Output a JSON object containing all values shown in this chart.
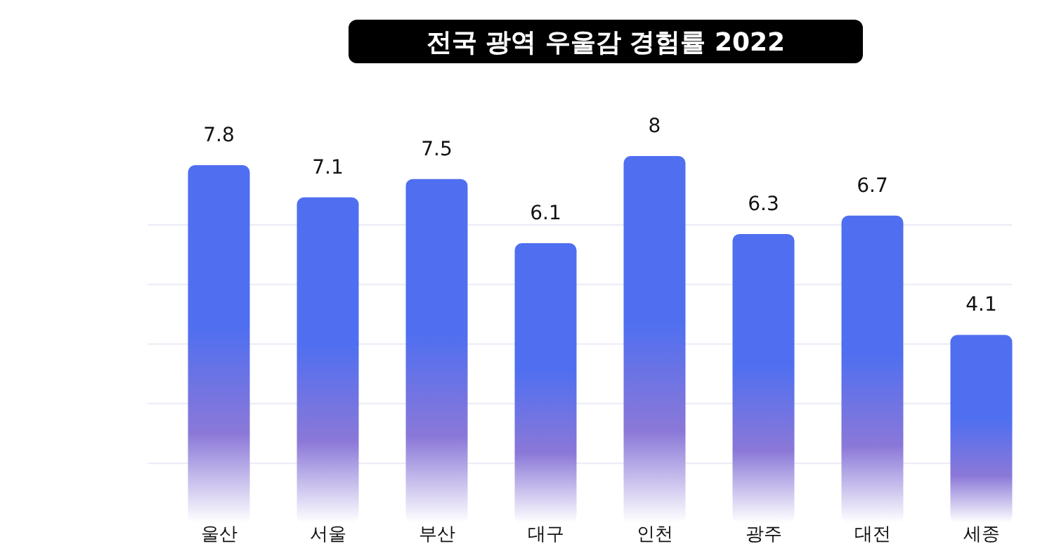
{
  "chart_data": {
    "type": "bar",
    "title": "전국 광역 우울감 경험률 2022",
    "categories": [
      "울산",
      "서울",
      "부산",
      "대구",
      "인천",
      "광주",
      "대전",
      "세종"
    ],
    "values": [
      7.8,
      7.1,
      7.5,
      6.1,
      8,
      6.3,
      6.7,
      4.1
    ],
    "color": "#4f6ff0",
    "ylim": [
      0,
      8
    ],
    "yticks": [
      {
        "value": 1.3,
        "label": null
      },
      {
        "value": 2.6,
        "label": null
      },
      {
        "value": 3.9,
        "label": null
      },
      {
        "value": 5.2,
        "label": null
      },
      {
        "value": 6.5,
        "label": null
      }
    ],
    "grid": "y",
    "data_labels": true
  }
}
